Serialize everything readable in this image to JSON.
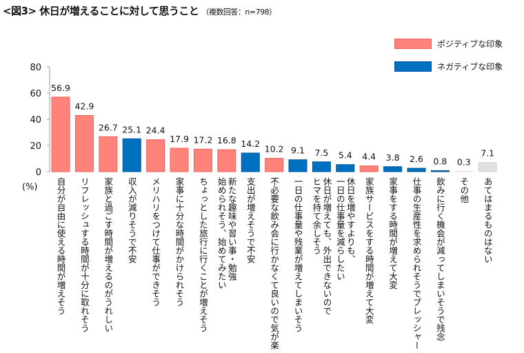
{
  "title": "<図3> 休日が増えることに対して思うこと",
  "subtitle": "（複数回答：n=798）",
  "chart_data": {
    "type": "bar",
    "title": "<図3> 休日が増えることに対して思うこと",
    "ylabel": "(%)",
    "ylim": [
      0,
      80
    ],
    "yticks": [
      0,
      20,
      40,
      60,
      80
    ],
    "grid": false,
    "legend_position": "top-right",
    "legend": [
      {
        "name": "ポジティブな印象",
        "color": "#ff837a"
      },
      {
        "name": "ネガティブな印象",
        "color": "#0070c0"
      }
    ],
    "colors": {
      "positive": "#ff837a",
      "negative": "#0070c0",
      "other": "#f2f2f2",
      "none": "#e0e0e0"
    },
    "categories": [
      "自分が自由に使える時間が増えそう",
      "リフレッシュする時間が十分に取れそう",
      "家族と過ごす時間が増えるのがうれしい",
      "収入が減りそうで不安",
      "メリハリをつけて仕事ができそう",
      "家事に十分な時間がかけられそう",
      "ちょっとした旅行に行くことが増えそう",
      "新たな趣味や習い事・勉強\n始められそう、始めてみたい",
      "支出が増えそうで不安",
      "不必要な飲み会に行かなくて良いので気が楽",
      "一日の仕事量や残業が増えてしまいそう",
      "休日が増えても、外出できないので\nヒマを持て余しそう",
      "休日を増やすよりも、\n一日の仕事量を減らしたい",
      "家族サービスをする時間が増えて大変",
      "家事をする時間が増えて大変",
      "仕事の生産性を求められそうでプレッシャー",
      "飲みに行く機会が減ってしまいそうで残念",
      "その他",
      "あてはまるものはない"
    ],
    "values": [
      56.9,
      42.9,
      26.7,
      25.1,
      24.4,
      17.9,
      17.2,
      16.8,
      14.2,
      10.2,
      9.1,
      7.5,
      5.4,
      4.4,
      3.8,
      2.6,
      0.8,
      0.3,
      7.1
    ],
    "value_labels": [
      "56.9",
      "42.9",
      "26.7",
      "25.1",
      "24.4",
      "17.9",
      "17.2",
      "16.8",
      "14.2",
      "10.2",
      "9.1",
      "7.5",
      "5.4",
      "4.4",
      "3.8",
      "2.6",
      "0.8",
      "0.3",
      "7.1"
    ],
    "groups": [
      "positive",
      "positive",
      "positive",
      "negative",
      "positive",
      "positive",
      "positive",
      "positive",
      "negative",
      "positive",
      "negative",
      "negative",
      "negative",
      "positive",
      "negative",
      "negative",
      "negative",
      "other",
      "none"
    ]
  }
}
